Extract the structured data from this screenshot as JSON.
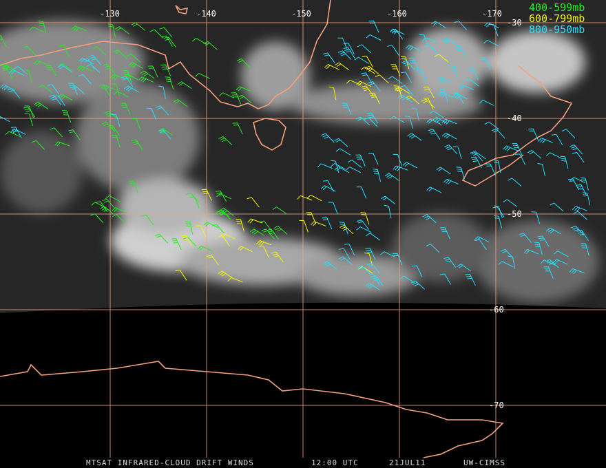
{
  "graticule": {
    "longitude_labels": [
      "-130",
      "-140",
      "-150",
      "-160",
      "-170"
    ],
    "latitude_labels": [
      "-30",
      "-40",
      "-50",
      "-60",
      "-70"
    ]
  },
  "legend": [
    "400-599mb",
    "600-799mb",
    "800-950mb"
  ],
  "footer": {
    "product": "MTSAT INFRARED-CLOUD DRIFT WINDS",
    "time": "12:00 UTC",
    "date": "21JUL11",
    "source": "UW-CIMSS"
  }
}
